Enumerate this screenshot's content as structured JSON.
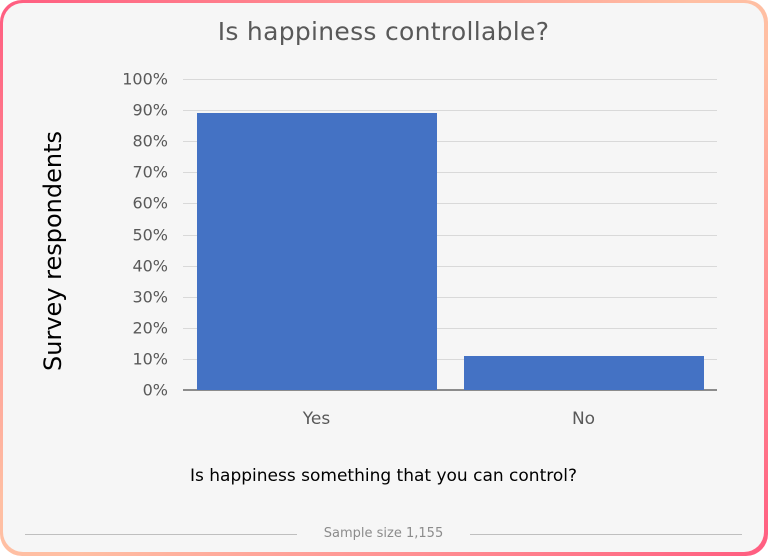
{
  "chart_data": {
    "type": "bar",
    "title": "Is happiness controllable?",
    "xlabel": "Is happiness something that you can control?",
    "ylabel": "Survey respondents",
    "categories": [
      "Yes",
      "No"
    ],
    "values": [
      89,
      11
    ],
    "unit": "%",
    "ylim": [
      0,
      100
    ],
    "yticks": [
      "0%",
      "10%",
      "20%",
      "30%",
      "40%",
      "50%",
      "60%",
      "70%",
      "80%",
      "90%",
      "100%"
    ],
    "grid": true,
    "legend": null,
    "bar_color": "#4472c4",
    "footnote": "Sample size 1,155"
  },
  "colors": {
    "bar": "#4472c4",
    "background": "#f6f6f6",
    "border_pink": "#ff5c80",
    "border_peach": "#ffbfa3"
  }
}
